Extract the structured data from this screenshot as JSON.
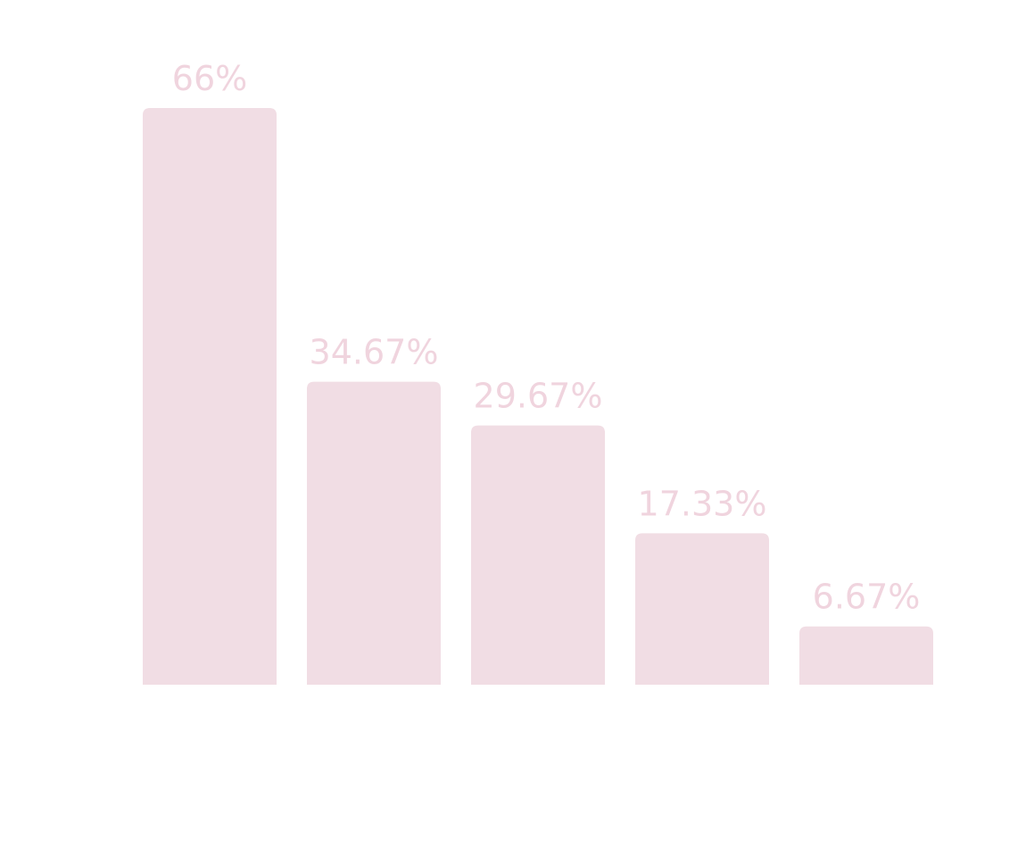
{
  "chart_data": {
    "type": "bar",
    "categories": [
      null,
      null,
      null,
      null,
      null
    ],
    "values": [
      66,
      34.67,
      29.67,
      17.33,
      6.67
    ],
    "value_labels": [
      "66%",
      "34.67%",
      "29.67%",
      "17.33%",
      "6.67%"
    ],
    "color": "#f1dde4",
    "label_color": "#f0d4de",
    "ylim": [
      0,
      66
    ]
  }
}
